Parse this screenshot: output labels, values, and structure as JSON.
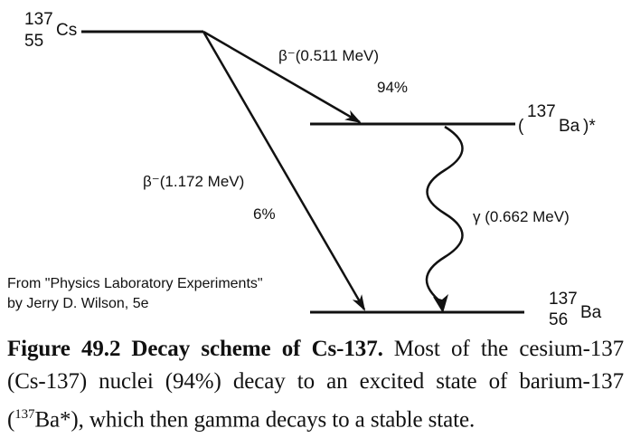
{
  "diagram": {
    "parent": {
      "mass": "137",
      "atomic": "55",
      "symbol": "Cs"
    },
    "excited": {
      "open": "(",
      "mass": "137",
      "symbol": "Ba",
      "close": ")*"
    },
    "ground": {
      "mass": "137",
      "atomic": "56",
      "symbol": "Ba"
    },
    "beta1": {
      "label": "β⁻(0.511 MeV)",
      "percent": "94%"
    },
    "beta2": {
      "label": "β⁻(1.172 MeV)",
      "percent": "6%"
    },
    "gamma": {
      "label": "γ (0.662 MeV)"
    },
    "credit": {
      "line1": "From \"Physics Laboratory Experiments\"",
      "line2": "by Jerry D. Wilson, 5e"
    }
  },
  "caption": {
    "figure_label": "Figure 49.2",
    "figure_title": "Decay scheme of Cs-137.",
    "text_a": "Most of the cesium-137 (Cs-137) nuclei (94%) decay to an excited state of barium-137 (",
    "sup": "137",
    "text_b": "Ba*), which then gamma decays to a stable state."
  }
}
